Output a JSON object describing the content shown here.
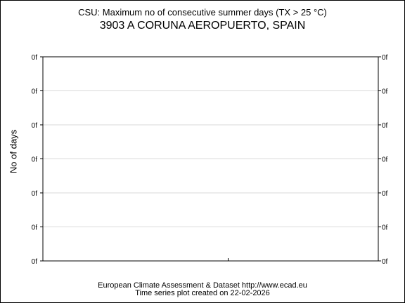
{
  "chart_data": {
    "type": "line",
    "title": "CSU: Maximum no of consecutive summer days (TX > 25 °C)",
    "subtitle": "3903 A CORUNA AEROPUERTO, SPAIN",
    "ylabel": "No of days",
    "y_tick_labels": [
      "0f",
      "0f",
      "0f",
      "0f",
      "0f",
      "0f",
      "0f"
    ],
    "grid": true,
    "series": []
  },
  "footer": {
    "line1": "European Climate Assessment & Dataset  http://www.ecad.eu",
    "line2": "Time series plot created on 22-02-2026"
  }
}
